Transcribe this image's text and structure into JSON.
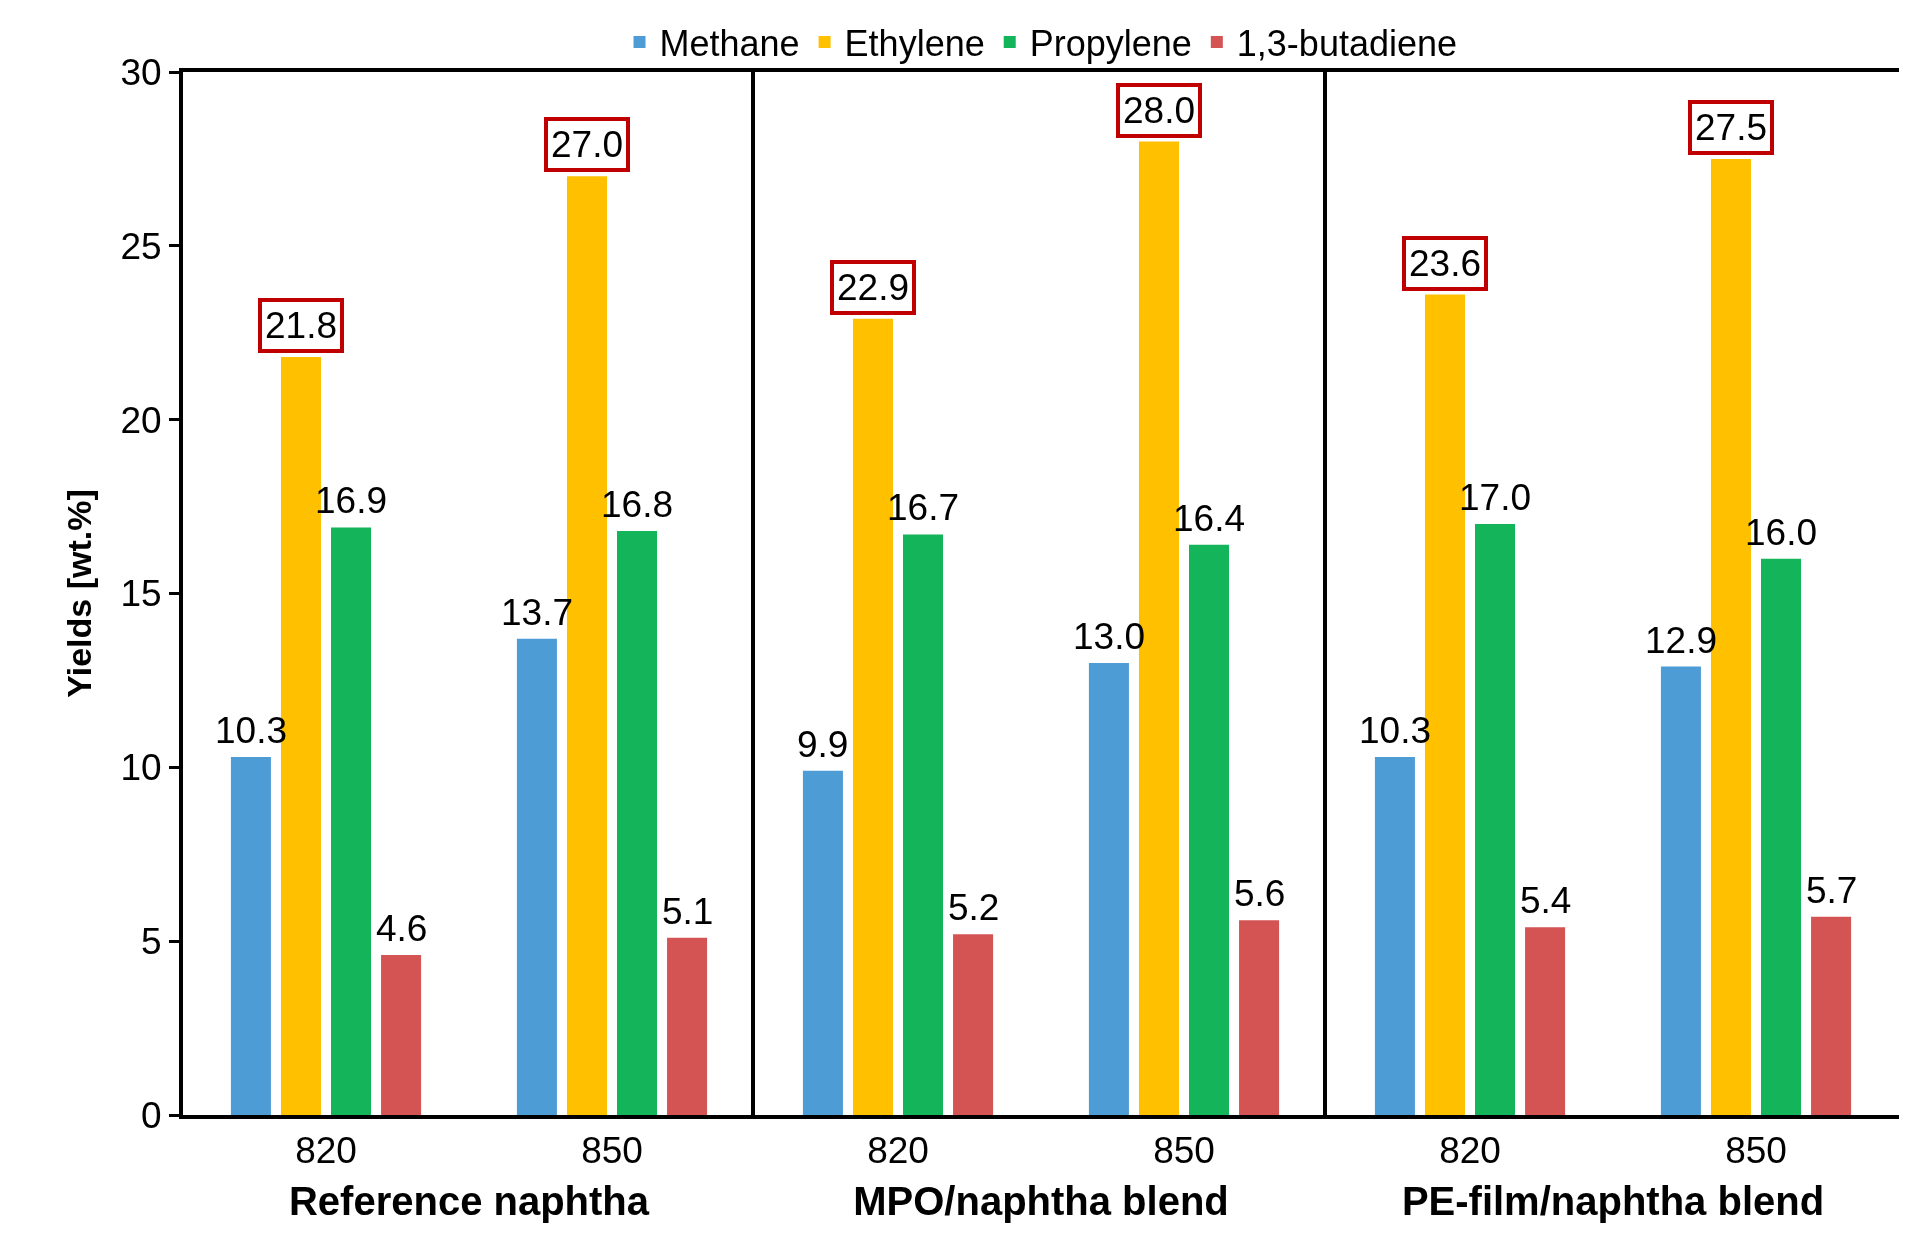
{
  "chart_data": [
    {
      "type": "bar",
      "xlabel": "Reference naphtha",
      "ylabel": "Yields [wt.%]",
      "categories": [
        "820",
        "850"
      ],
      "ylim": [
        0,
        30
      ],
      "yticks": [
        0,
        5,
        10,
        15,
        20,
        25,
        30
      ],
      "legend": "top",
      "grid": false,
      "series": [
        {
          "name": "Methane",
          "color": "#4e9cd5",
          "values": [
            10.3,
            13.7
          ],
          "value_labels": [
            "10.3",
            "13.7"
          ]
        },
        {
          "name": "Ethylene",
          "color": "#ffc000",
          "values": [
            21.8,
            27.0
          ],
          "value_labels": [
            "21.8",
            "27.0"
          ]
        },
        {
          "name": "Propylene",
          "color": "#14b45a",
          "values": [
            16.9,
            16.8
          ],
          "value_labels": [
            "16.9",
            "16.8"
          ]
        },
        {
          "name": "1,3-butadiene",
          "color": "#d45353",
          "values": [
            4.6,
            5.1
          ],
          "value_labels": [
            "4.6",
            "5.1"
          ]
        }
      ]
    },
    {
      "type": "bar",
      "xlabel": "MPO/naphtha blend",
      "categories": [
        "820",
        "850"
      ],
      "ylim": [
        0,
        30
      ],
      "yticks": [
        0,
        5,
        10,
        15,
        20,
        25,
        30
      ],
      "tick_labels": "x",
      "legend": false,
      "grid": false,
      "series": [
        {
          "color": "#4e9cd5",
          "values": [
            9.9,
            13.0
          ],
          "value_labels": [
            "9.9",
            "13.0"
          ]
        },
        {
          "color": "#ffc000",
          "values": [
            22.9,
            28.0
          ],
          "value_labels": [
            "22.9",
            "28.0"
          ]
        },
        {
          "color": "#14b45a",
          "values": [
            16.7,
            16.4
          ],
          "value_labels": [
            "16.7",
            "16.4"
          ]
        },
        {
          "color": "#d45353",
          "values": [
            5.2,
            5.6
          ],
          "value_labels": [
            "5.2",
            "5.6"
          ]
        }
      ]
    },
    {
      "type": "bar",
      "xlabel": "PE-film/naphtha blend",
      "categories": [
        "820",
        "850"
      ],
      "ylim": [
        0,
        30
      ],
      "yticks": [
        0,
        5,
        10,
        15,
        20,
        25,
        30
      ],
      "tick_labels": "x",
      "legend": false,
      "grid": false,
      "series": [
        {
          "color": "#4e9cd5",
          "values": [
            10.3,
            12.9
          ],
          "value_labels": [
            "10.3",
            "12.9"
          ]
        },
        {
          "color": "#ffc000",
          "values": [
            23.6,
            27.5
          ],
          "value_labels": [
            "23.6",
            "27.5"
          ]
        },
        {
          "color": "#14b45a",
          "values": [
            17.0,
            16.0
          ],
          "value_labels": [
            "17.0",
            "16.0"
          ]
        },
        {
          "color": "#d45353",
          "values": [
            5.4,
            5.7
          ],
          "value_labels": [
            "5.4",
            "5.7"
          ]
        }
      ]
    }
  ]
}
